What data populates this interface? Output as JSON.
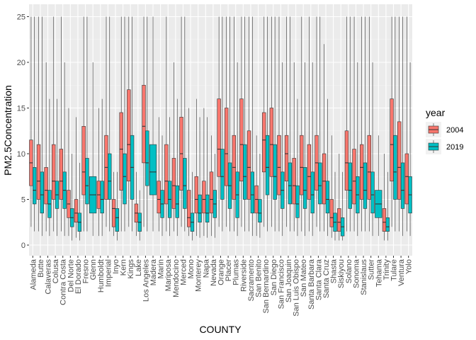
{
  "chart_data": {
    "type": "boxplot",
    "title": "",
    "xlabel": "COUNTY",
    "ylabel": "PM2.5Concentration",
    "ylim": [
      -1,
      25.5
    ],
    "y_ticks": [
      0,
      5,
      10,
      15,
      20,
      25
    ],
    "grid": true,
    "legend": {
      "title": "year",
      "position": "right",
      "entries": [
        {
          "label": "2004",
          "color": "#F8766D"
        },
        {
          "label": "2019",
          "color": "#00BFC4"
        }
      ]
    },
    "categories": [
      "Alameda",
      "Butte",
      "Calaveras",
      "Colusa",
      "Contra Costa",
      "Del Norte",
      "El Dorado",
      "Fresno",
      "Glenn",
      "Humboldt",
      "Imperial",
      "Inyo",
      "Kern",
      "Kings",
      "Lake",
      "Los Angeles",
      "Madera",
      "Marin",
      "Mariposa",
      "Mendocino",
      "Merced",
      "Mono",
      "Monterey",
      "Napa",
      "Nevada",
      "Orange",
      "Placer",
      "Plumas",
      "Riverside",
      "Sacramento",
      "San Benito",
      "San Bernardino",
      "San Diego",
      "San Francisco",
      "San Joaquin",
      "San Luis Obispo",
      "San Mateo",
      "Santa Barbara",
      "Santa Clara",
      "Santa Cruz",
      "Shasta",
      "Siskiyou",
      "Solano",
      "Sonoma",
      "Stanislaus",
      "Sutter",
      "Tehama",
      "Trinity",
      "Tulare",
      "Ventura",
      "Yolo"
    ],
    "series": [
      {
        "name": "2004",
        "boxes": [
          [
            2.0,
            6.5,
            9.0,
            11.5,
            25.0
          ],
          [
            1.5,
            5.0,
            7.0,
            11.0,
            25.0
          ],
          [
            1.5,
            4.5,
            6.0,
            8.5,
            20.0
          ],
          [
            1.5,
            5.0,
            7.0,
            11.0,
            25.0
          ],
          [
            1.5,
            5.0,
            7.0,
            10.5,
            25.0
          ],
          [
            1.0,
            3.0,
            4.5,
            6.0,
            15.0
          ],
          [
            0.8,
            2.5,
            3.5,
            5.0,
            14.0
          ],
          [
            1.5,
            5.5,
            8.0,
            13.0,
            25.0
          ],
          [],
          [
            1.0,
            4.0,
            5.5,
            7.0,
            15.0
          ],
          [
            2.0,
            5.0,
            8.5,
            12.0,
            25.0
          ],
          [
            1.0,
            2.0,
            4.0,
            5.0,
            8.0
          ],
          [
            1.5,
            6.0,
            10.5,
            14.5,
            25.0
          ],
          [
            2.0,
            7.0,
            11.0,
            17.0,
            25.0
          ],
          [
            1.0,
            2.5,
            3.5,
            4.5,
            8.0
          ],
          [
            2.0,
            9.0,
            13.0,
            17.5,
            25.0
          ],
          [],
          [
            1.5,
            3.5,
            5.0,
            7.0,
            14.0
          ],
          [
            1.5,
            4.5,
            7.0,
            11.0,
            25.0
          ],
          [
            1.5,
            4.0,
            6.5,
            9.5,
            20.0
          ],
          [
            2.0,
            6.0,
            10.0,
            14.0,
            25.0
          ],
          [
            1.0,
            2.0,
            3.0,
            6.0,
            15.0
          ],
          [
            1.0,
            3.5,
            5.0,
            7.5,
            16.0
          ],
          [
            1.0,
            3.5,
            5.0,
            7.0,
            15.0
          ],
          [
            1.0,
            3.5,
            5.0,
            8.0,
            12.0
          ],
          [
            2.0,
            7.5,
            10.5,
            16.0,
            25.0
          ],
          [
            2.0,
            6.5,
            10.0,
            15.0,
            25.0
          ],
          [
            1.5,
            5.0,
            8.5,
            12.0,
            25.0
          ],
          [
            2.0,
            7.0,
            11.0,
            16.0,
            25.0
          ],
          [
            1.5,
            5.0,
            8.5,
            12.5,
            25.0
          ],
          [
            1.0,
            3.5,
            5.0,
            6.5,
            12.0
          ],
          [
            2.0,
            8.0,
            11.5,
            14.5,
            25.0
          ],
          [
            2.0,
            7.5,
            11.0,
            15.0,
            25.0
          ],
          [
            1.5,
            5.5,
            8.5,
            12.0,
            25.0
          ],
          [
            2.0,
            7.0,
            10.0,
            12.0,
            25.0
          ],
          [
            1.5,
            4.5,
            6.5,
            9.5,
            20.0
          ],
          [
            1.5,
            5.5,
            8.5,
            12.0,
            25.0
          ],
          [
            1.5,
            5.0,
            7.5,
            11.0,
            25.0
          ],
          [
            2.0,
            6.0,
            9.0,
            12.0,
            25.0
          ],
          [
            1.5,
            4.5,
            7.0,
            10.0,
            22.0
          ],
          [
            0.8,
            2.0,
            3.0,
            5.0,
            12.0
          ],
          [
            0.5,
            1.5,
            2.5,
            4.0,
            10.0
          ],
          [
            1.5,
            6.0,
            9.0,
            12.5,
            25.0
          ],
          [
            1.5,
            4.5,
            7.0,
            10.5,
            25.0
          ],
          [
            1.5,
            5.0,
            8.5,
            11.0,
            25.0
          ],
          [
            1.5,
            5.0,
            8.0,
            12.0,
            25.0
          ],
          [],
          [
            0.5,
            1.5,
            2.5,
            4.0,
            10.0
          ],
          [
            2.0,
            7.0,
            11.0,
            16.0,
            25.0
          ],
          [
            1.5,
            5.0,
            8.5,
            13.5,
            25.0
          ],
          [
            1.5,
            4.5,
            7.5,
            10.0,
            25.0
          ]
        ]
      },
      {
        "name": "2019",
        "boxes": [
          [
            1.5,
            4.5,
            6.0,
            8.5,
            25.0
          ],
          [
            1.0,
            3.5,
            5.5,
            8.0,
            25.0
          ],
          [
            1.0,
            3.0,
            4.5,
            6.0,
            16.0
          ],
          [
            1.0,
            4.0,
            5.5,
            7.0,
            16.0
          ],
          [
            1.0,
            4.0,
            6.0,
            8.0,
            20.0
          ],
          [
            0.5,
            2.0,
            3.0,
            4.0,
            10.0
          ],
          [
            0.5,
            1.5,
            2.5,
            3.5,
            9.0
          ],
          [
            1.5,
            4.5,
            6.5,
            9.5,
            25.0
          ],
          [
            1.0,
            3.5,
            5.5,
            7.5,
            20.0
          ],
          [
            1.0,
            3.5,
            5.0,
            7.0,
            16.0
          ],
          [
            1.5,
            5.0,
            7.0,
            10.0,
            25.0
          ],
          [
            0.5,
            1.5,
            3.0,
            4.0,
            8.0
          ],
          [
            1.5,
            4.5,
            7.5,
            10.0,
            25.0
          ],
          [
            1.5,
            5.0,
            8.5,
            12.0,
            25.0
          ],
          [
            0.5,
            1.5,
            2.5,
            3.5,
            6.0
          ],
          [
            1.5,
            6.5,
            9.0,
            12.5,
            25.0
          ],
          [
            1.5,
            5.5,
            8.0,
            11.0,
            25.0
          ],
          [
            1.0,
            3.0,
            4.5,
            6.0,
            12.0
          ],
          [
            1.0,
            3.0,
            5.0,
            7.0,
            14.0
          ],
          [
            1.0,
            3.0,
            4.5,
            6.5,
            16.0
          ],
          [
            1.5,
            4.0,
            6.5,
            9.5,
            25.0
          ],
          [
            0.5,
            1.5,
            2.5,
            3.5,
            8.0
          ],
          [
            0.8,
            2.5,
            3.5,
            5.5,
            14.0
          ],
          [
            0.8,
            2.5,
            3.5,
            5.5,
            14.0
          ],
          [
            0.8,
            3.0,
            4.5,
            6.0,
            10.0
          ],
          [
            1.5,
            5.0,
            7.5,
            10.5,
            25.0
          ],
          [
            1.5,
            4.0,
            6.5,
            9.0,
            25.0
          ],
          [
            1.0,
            3.0,
            5.5,
            8.0,
            20.0
          ],
          [
            1.5,
            5.0,
            7.5,
            11.0,
            25.0
          ],
          [
            1.0,
            3.5,
            5.5,
            8.0,
            25.0
          ],
          [
            0.8,
            2.5,
            3.5,
            5.0,
            10.0
          ],
          [
            1.5,
            5.5,
            8.5,
            12.0,
            25.0
          ],
          [
            1.5,
            5.0,
            7.5,
            11.0,
            25.0
          ],
          [
            1.0,
            4.0,
            6.0,
            8.0,
            20.0
          ],
          [
            1.5,
            4.5,
            6.5,
            9.0,
            25.0
          ],
          [
            1.0,
            3.0,
            4.5,
            6.5,
            16.0
          ],
          [
            1.0,
            4.0,
            6.0,
            8.5,
            20.0
          ],
          [
            1.0,
            3.5,
            5.5,
            8.0,
            20.0
          ],
          [
            1.5,
            4.5,
            6.5,
            9.0,
            25.0
          ],
          [
            1.0,
            3.5,
            5.0,
            7.0,
            16.0
          ],
          [
            0.5,
            1.5,
            2.5,
            3.5,
            8.0
          ],
          [
            0.5,
            1.0,
            2.0,
            3.0,
            8.0
          ],
          [
            1.5,
            4.0,
            6.0,
            9.0,
            25.0
          ],
          [
            1.0,
            3.5,
            5.5,
            7.5,
            20.0
          ],
          [
            1.5,
            4.0,
            6.0,
            9.0,
            25.0
          ],
          [
            1.0,
            3.5,
            5.5,
            8.0,
            20.0
          ],
          [
            1.0,
            3.0,
            4.5,
            6.0,
            12.0
          ],
          [
            0.5,
            1.5,
            2.0,
            3.0,
            8.0
          ],
          [
            1.5,
            5.0,
            8.0,
            12.0,
            25.0
          ],
          [
            1.0,
            4.0,
            6.0,
            9.0,
            25.0
          ],
          [
            1.0,
            3.5,
            5.5,
            7.5,
            20.0
          ]
        ]
      }
    ]
  }
}
